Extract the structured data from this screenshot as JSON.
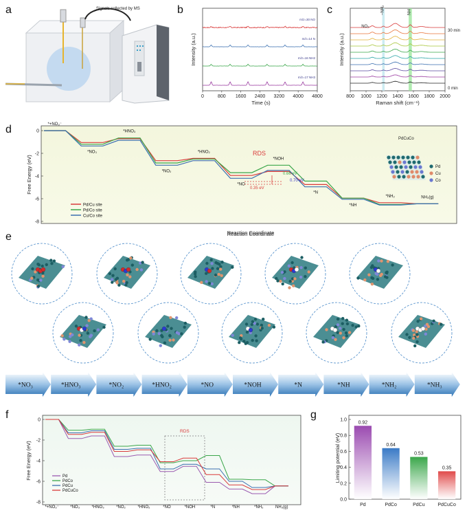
{
  "panels": {
    "a": "a",
    "b": "b",
    "c": "c",
    "d": "d",
    "e": "e",
    "f": "f",
    "g": "g"
  },
  "panel_a": {
    "caption": "Signals collected by MS"
  },
  "chart_data": [
    {
      "id": "b",
      "type": "line",
      "xlabel": "Time (s)",
      "ylabel": "Intensity (a.u.)",
      "xlim": [
        0,
        4800
      ],
      "xticks": [
        0,
        800,
        1600,
        2400,
        3200,
        4000,
        4800
      ],
      "series": [
        {
          "name": "m/z=30 NO",
          "color": "#d93a3a",
          "offset": 4,
          "peaks": [
            360,
            1150,
            1900,
            2700,
            3450,
            4200
          ],
          "noise": 0.12,
          "amp": 0.15
        },
        {
          "name": "m/z=14 N",
          "color": "#3a6fb0",
          "offset": 3,
          "peaks": [
            360,
            1150,
            1900,
            2700,
            3450,
            4200
          ],
          "noise": 0.03,
          "amp": 0.25
        },
        {
          "name": "m/z=16 NH2",
          "color": "#3aa64a",
          "offset": 2,
          "peaks": [
            360,
            1150,
            1900,
            2700,
            3450,
            4200
          ],
          "noise": 0.03,
          "amp": 0.25
        },
        {
          "name": "m/z=17 NH3",
          "color": "#9a3aa0",
          "offset": 1,
          "peaks": [
            360,
            1150,
            1900,
            2700,
            3450,
            4200
          ],
          "noise": 0.03,
          "amp": 0.5
        }
      ]
    },
    {
      "id": "c",
      "type": "line",
      "xlabel": "Raman shift (cm⁻¹)",
      "ylabel": "Intensity (a.u.)",
      "xlim": [
        800,
        2000
      ],
      "xticks": [
        800,
        1000,
        1200,
        1400,
        1600,
        1800,
        2000
      ],
      "band_labels": [
        "NO₂",
        "–NH₂",
        "NH"
      ],
      "time_labels": [
        "30 min",
        "0 min"
      ],
      "band_positions": [
        1080,
        1220,
        1560
      ],
      "colors": [
        "#d93a3a",
        "#e8743a",
        "#e3b23a",
        "#a8c63a",
        "#3aa64a",
        "#2aa5a5",
        "#3a6fb0",
        "#5a4aa0",
        "#9a3aa0",
        "#222222"
      ]
    },
    {
      "id": "d",
      "type": "line",
      "title": "PdCuCo",
      "xlabel": "Reaction Coordinate",
      "ylabel": "Free Energy (eV)",
      "ylim": [
        -8,
        0
      ],
      "yticks": [
        0,
        -2,
        -4,
        -6,
        -8
      ],
      "steps": [
        "*+NO₃⁻",
        "*NO₃",
        "*HNO₃",
        "*NO₂",
        "*HNO₂",
        "*NO",
        "*NOH",
        "*N",
        "*NH",
        "*NH₂",
        "NH₃(g)"
      ],
      "series": [
        {
          "name": "Pd/Cu site",
          "color": "#d93a3a",
          "values": [
            0,
            -1.05,
            -0.7,
            -2.65,
            -2.45,
            -3.95,
            -3.6,
            -4.75,
            -5.95,
            -6.35,
            -6.45
          ]
        },
        {
          "name": "Pd/Co site",
          "color": "#3aa64a",
          "values": [
            0,
            -1.2,
            -0.65,
            -2.85,
            -2.5,
            -3.7,
            -3.05,
            -4.45,
            -5.95,
            -6.5,
            -6.45
          ]
        },
        {
          "name": "Cu/Co site",
          "color": "#3a6fb0",
          "values": [
            0,
            -1.35,
            -0.85,
            -3.05,
            -2.65,
            -4.2,
            -3.5,
            -4.95,
            -6.05,
            -6.55,
            -6.45
          ]
        }
      ],
      "annotations": {
        "rds": "RDS",
        "e1": "0.66 eV",
        "e2": "0.70 eV",
        "e3": "0.35 eV"
      },
      "legend_atoms": [
        "Pd",
        "Cu",
        "Co"
      ]
    },
    {
      "id": "f",
      "type": "line",
      "ylabel": "Free Energy (eV)",
      "ylim": [
        -8,
        0
      ],
      "yticks": [
        0,
        -2,
        -4,
        -6,
        -8
      ],
      "steps": [
        "*+NO₃⁻",
        "*NO₃",
        "*HNO₃",
        "*NO₂",
        "*HNO₂",
        "*NO",
        "*NOH",
        "*N",
        "*NH",
        "*NH₂",
        "NH₃(g)"
      ],
      "rds": "RDS",
      "series": [
        {
          "name": "Pd",
          "color": "#9a5ab0",
          "values": [
            0,
            -1.85,
            -1.6,
            -3.6,
            -3.45,
            -5.05,
            -4.55,
            -6.1,
            -6.75,
            -7.2,
            -6.45
          ]
        },
        {
          "name": "PdCo",
          "color": "#3aa64a",
          "values": [
            0,
            -1.05,
            -0.95,
            -2.6,
            -2.5,
            -4.2,
            -4.0,
            -3.5,
            -5.8,
            -5.85,
            -6.45
          ]
        },
        {
          "name": "PdCu",
          "color": "#3a6fb0",
          "values": [
            0,
            -1.3,
            -1.1,
            -2.9,
            -2.8,
            -4.8,
            -4.35,
            -4.8,
            -6.0,
            -6.6,
            -6.45
          ]
        },
        {
          "name": "PdCuCo",
          "color": "#d93a3a",
          "values": [
            0,
            -1.45,
            -1.25,
            -3.1,
            -2.95,
            -4.1,
            -3.75,
            -5.35,
            -6.35,
            -6.8,
            -6.45
          ]
        }
      ]
    },
    {
      "id": "g",
      "type": "bar",
      "ylabel": "Limiting potential (eV)",
      "ylim": [
        0,
        1.0
      ],
      "categories": [
        "Pd",
        "PdCo",
        "PdCu",
        "PdCuCo"
      ],
      "values": [
        0.92,
        0.64,
        0.53,
        0.35
      ],
      "value_labels": [
        "0.92",
        "0.64",
        "0.53",
        "0.35"
      ],
      "colors": [
        "#9a4ab0",
        "#3a7ac6",
        "#3aa64a",
        "#e04a4a"
      ]
    }
  ],
  "panel_e": {
    "xlabel": "Reaction Coordinate",
    "steps": [
      "*NO₃",
      "*HNO₃",
      "*NO₂",
      "*HNO₂",
      "*NO",
      "*NOH",
      "*N",
      "*NH",
      "*NH₂",
      "*NH₃"
    ]
  }
}
